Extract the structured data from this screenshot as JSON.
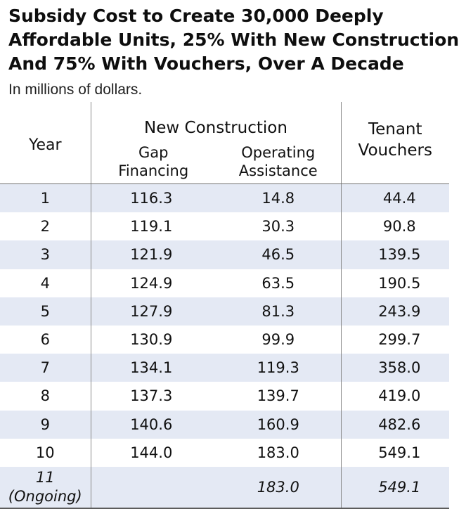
{
  "title": {
    "line1": "Subsidy Cost to Create 30,000 Deeply",
    "line2": "Affordable Units, 25% With New Construction",
    "line3": "And 75% With Vouchers, Over A Decade"
  },
  "subtitle": "In millions of dollars.",
  "header": {
    "year": "Year",
    "group_new_construction": "New Construction",
    "gap_line1": "Gap",
    "gap_line2": "Financing",
    "op_line1": "Operating",
    "op_line2": "Assistance",
    "vouchers_line1": "Tenant",
    "vouchers_line2": "Vouchers"
  },
  "rows": [
    {
      "year": "1",
      "gap": "116.3",
      "op": "14.8",
      "vouchers": "44.4"
    },
    {
      "year": "2",
      "gap": "119.1",
      "op": "30.3",
      "vouchers": "90.8"
    },
    {
      "year": "3",
      "gap": "121.9",
      "op": "46.5",
      "vouchers": "139.5"
    },
    {
      "year": "4",
      "gap": "124.9",
      "op": "63.5",
      "vouchers": "190.5"
    },
    {
      "year": "5",
      "gap": "127.9",
      "op": "81.3",
      "vouchers": "243.9"
    },
    {
      "year": "6",
      "gap": "130.9",
      "op": "99.9",
      "vouchers": "299.7"
    },
    {
      "year": "7",
      "gap": "134.1",
      "op": "119.3",
      "vouchers": "358.0"
    },
    {
      "year": "8",
      "gap": "137.3",
      "op": "139.7",
      "vouchers": "419.0"
    },
    {
      "year": "9",
      "gap": "140.6",
      "op": "160.9",
      "vouchers": "482.6"
    },
    {
      "year": "10",
      "gap": "144.0",
      "op": "183.0",
      "vouchers": "549.1"
    }
  ],
  "ongoing_row": {
    "year_line1": "11",
    "year_line2": "(Ongoing)",
    "gap": "",
    "op": "183.0",
    "vouchers": "549.1"
  },
  "colors": {
    "band": "#e4e9f4",
    "rule": "#6f6f6f",
    "text": "#111111"
  }
}
